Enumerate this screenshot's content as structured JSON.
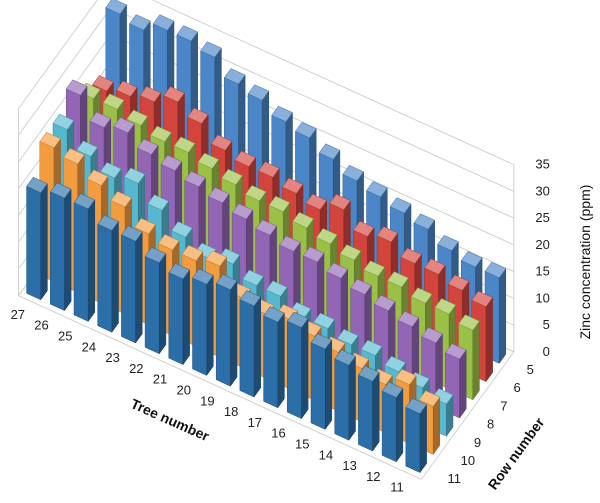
{
  "chart_data": {
    "type": "bar3d",
    "x_axis": {
      "label": "Tree number",
      "categories": [
        "27",
        "26",
        "25",
        "24",
        "23",
        "22",
        "21",
        "20",
        "19",
        "18",
        "17",
        "16",
        "15",
        "14",
        "13",
        "12",
        "11"
      ]
    },
    "y_axis": {
      "label": "Row number",
      "categories": [
        "11",
        "10",
        "9",
        "8",
        "7",
        "6",
        "5"
      ]
    },
    "z_axis": {
      "label": "Zinc concentration (ppm)",
      "ticks": [
        "0",
        "5",
        "10",
        "15",
        "20",
        "25",
        "30",
        "35"
      ],
      "range": [
        0,
        35
      ]
    },
    "gridlines": true,
    "series": [
      {
        "name": "11",
        "color": "#2c6ea8",
        "values": [
          20,
          21,
          21,
          19,
          19,
          17,
          16,
          17,
          18,
          17,
          16,
          17,
          15,
          14,
          13,
          12,
          11
        ]
      },
      {
        "name": "10",
        "color": "#f39c3f",
        "values": [
          25,
          24,
          22,
          20,
          17,
          16,
          16,
          17,
          13,
          12,
          13,
          12,
          11,
          10,
          9,
          11,
          9
        ]
      },
      {
        "name": "9",
        "color": "#55b8d0",
        "values": [
          25,
          22,
          20,
          21,
          18,
          15,
          13,
          14,
          12,
          12,
          10,
          10,
          9,
          9,
          8,
          7,
          6
        ]
      },
      {
        "name": "8",
        "color": "#9266b5",
        "values": [
          28,
          24,
          25,
          23,
          22,
          21,
          20,
          19,
          18,
          17,
          17,
          16,
          15,
          14,
          13,
          12,
          11
        ]
      },
      {
        "name": "7",
        "color": "#9ac146",
        "values": [
          24,
          24,
          23,
          22,
          22,
          21,
          20,
          19,
          19,
          18,
          17,
          16,
          15,
          15,
          14,
          14,
          13
        ]
      },
      {
        "name": "6",
        "color": "#d2443c",
        "values": [
          22,
          23,
          24,
          26,
          24,
          21,
          20,
          20,
          19,
          18,
          20,
          17,
          18,
          16,
          16,
          15,
          14
        ]
      },
      {
        "name": "5",
        "color": "#4a86c8",
        "values": [
          33,
          32,
          34,
          34,
          33,
          30,
          29,
          27,
          26,
          24,
          22,
          21,
          20,
          19,
          17,
          16,
          16
        ]
      }
    ]
  }
}
